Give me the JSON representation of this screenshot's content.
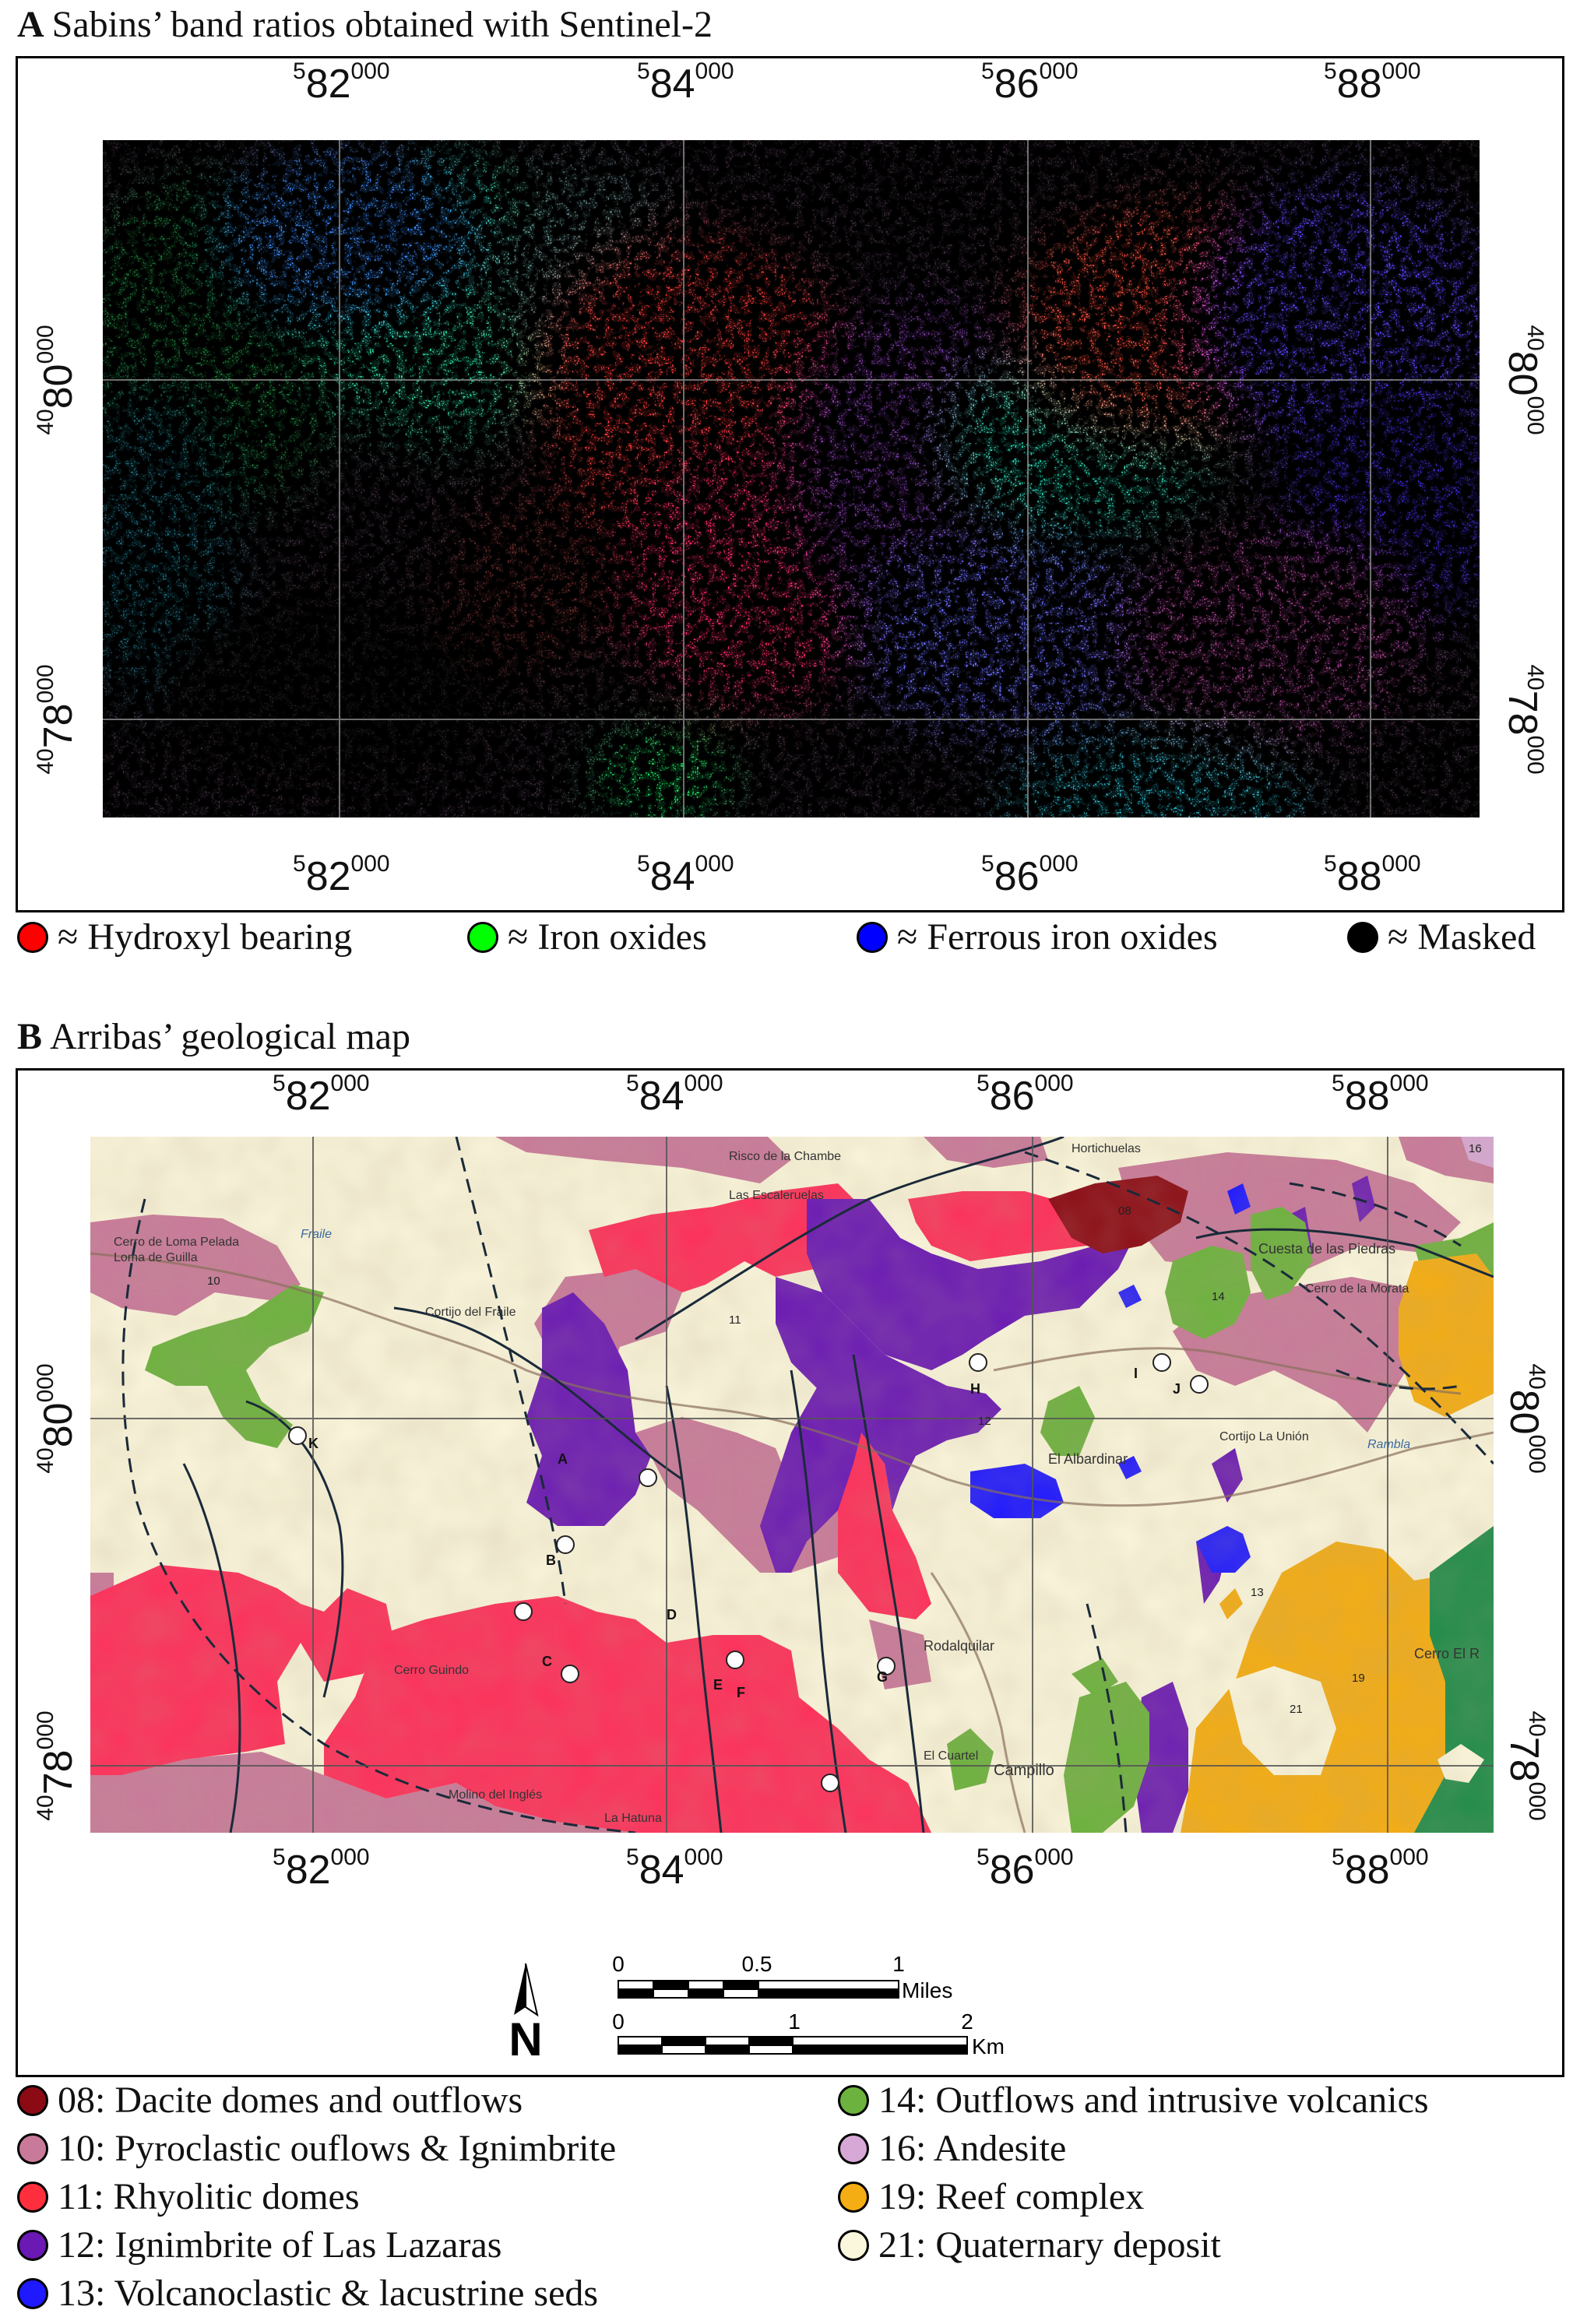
{
  "panel_a": {
    "letter": "A",
    "title": "Sabins’ band ratios obtained with Sentinel-2",
    "x_ticks_top": [
      {
        "base": "5",
        "main": "82",
        "sup": "000"
      },
      {
        "base": "5",
        "main": "84",
        "sup": "000"
      },
      {
        "base": "5",
        "main": "86",
        "sup": "000"
      },
      {
        "base": "5",
        "main": "88",
        "sup": "000"
      }
    ],
    "x_ticks_bottom": [
      {
        "base": "5",
        "main": "82",
        "sup": "000"
      },
      {
        "base": "5",
        "main": "84",
        "sup": "000"
      },
      {
        "base": "5",
        "main": "86",
        "sup": "000"
      },
      {
        "base": "5",
        "main": "88",
        "sup": "000"
      }
    ],
    "y_ticks_left": [
      {
        "base": "40",
        "main": "80",
        "sup": "000"
      },
      {
        "base": "40",
        "main": "78",
        "sup": "000"
      }
    ],
    "y_ticks_right": [
      {
        "base": "40",
        "main": "80",
        "sup": "000"
      },
      {
        "base": "40",
        "main": "78",
        "sup": "000"
      }
    ],
    "legend": [
      {
        "label": "≈ Hydroxyl bearing",
        "color": "#ff0000"
      },
      {
        "label": "≈ Iron oxides",
        "color": "#00ff00"
      },
      {
        "label": "≈ Ferrous iron oxides",
        "color": "#0000ff"
      },
      {
        "label": "≈ Masked",
        "color": "#000000"
      }
    ]
  },
  "panel_b": {
    "letter": "B",
    "title": "Arribas’ geological map",
    "map_labels": {
      "pelada": "Cerro de Loma Pelada",
      "lomadeguilla": "Loma de Guilla",
      "fraile": "Fraile",
      "fraile_cortijo": "Cortijo del Fraile",
      "escalerillas": "Las Escaleruelas",
      "chambe": "Risco de la Chambe",
      "albardinar": "El Albardinar",
      "rodalquilar": "Rodalquilar",
      "cuesta_piedras": "Cuesta de las Piedras",
      "cerro_morata": "Cerro de la Morata",
      "rambla": "Rambla",
      "cortijo_union": "Cortijo La Unión",
      "la_hatuna": "La Hatuna",
      "el_cuartel": "El Cuartel",
      "campillo": "Campillo",
      "cerro_guindo": "Cerro Guindo",
      "cerro_el_r": "Cerro El R",
      "hortichuelas": "Hortichuelas",
      "molino": "Molino del Inglés",
      "nums": [
        "10",
        "11",
        "12",
        "13",
        "14",
        "19",
        "21",
        "08",
        "16"
      ],
      "letters": [
        "A",
        "B",
        "C",
        "D",
        "E",
        "F",
        "G",
        "H",
        "I",
        "J",
        "K"
      ]
    },
    "x_ticks_top": [
      {
        "base": "5",
        "main": "82",
        "sup": "000"
      },
      {
        "base": "5",
        "main": "84",
        "sup": "000"
      },
      {
        "base": "5",
        "main": "86",
        "sup": "000"
      },
      {
        "base": "5",
        "main": "88",
        "sup": "000"
      }
    ],
    "x_ticks_bottom": [
      {
        "base": "5",
        "main": "82",
        "sup": "000"
      },
      {
        "base": "5",
        "main": "84",
        "sup": "000"
      },
      {
        "base": "5",
        "main": "86",
        "sup": "000"
      },
      {
        "base": "5",
        "main": "88",
        "sup": "000"
      }
    ],
    "y_ticks_left": [
      {
        "base": "40",
        "main": "80",
        "sup": "000"
      },
      {
        "base": "40",
        "main": "78",
        "sup": "000"
      }
    ],
    "y_ticks_right": [
      {
        "base": "40",
        "main": "80",
        "sup": "000"
      },
      {
        "base": "40",
        "main": "78",
        "sup": "000"
      }
    ],
    "scale_miles": {
      "labels": [
        "0",
        "0.5",
        "1"
      ],
      "unit": "Miles"
    },
    "scale_km": {
      "labels": [
        "0",
        "1",
        "2"
      ],
      "unit": "Km"
    },
    "north": "N",
    "legend_left": [
      {
        "label": "08: Dacite domes and outflows",
        "color": "#8b0a14"
      },
      {
        "label": "10: Pyroclastic ouflows & Ignimbrite",
        "color": "#c97a9a"
      },
      {
        "label": "11: Rhyolitic domes",
        "color": "#ff2e3c"
      },
      {
        "label": "12: Ignimbrite of Las Lazaras",
        "color": "#6a19b4"
      },
      {
        "label": "13: Volcanoclastic & lacustrine seds",
        "color": "#1f19ff"
      }
    ],
    "legend_right": [
      {
        "label": "14: Outflows and intrusive volcanics",
        "color": "#6cb23e"
      },
      {
        "label": "16: Andesite",
        "color": "#d7a8d6"
      },
      {
        "label": "19: Reef complex",
        "color": "#f4ad12"
      },
      {
        "label": "21: Quaternary deposit",
        "color": "#fbf7dc"
      }
    ]
  }
}
